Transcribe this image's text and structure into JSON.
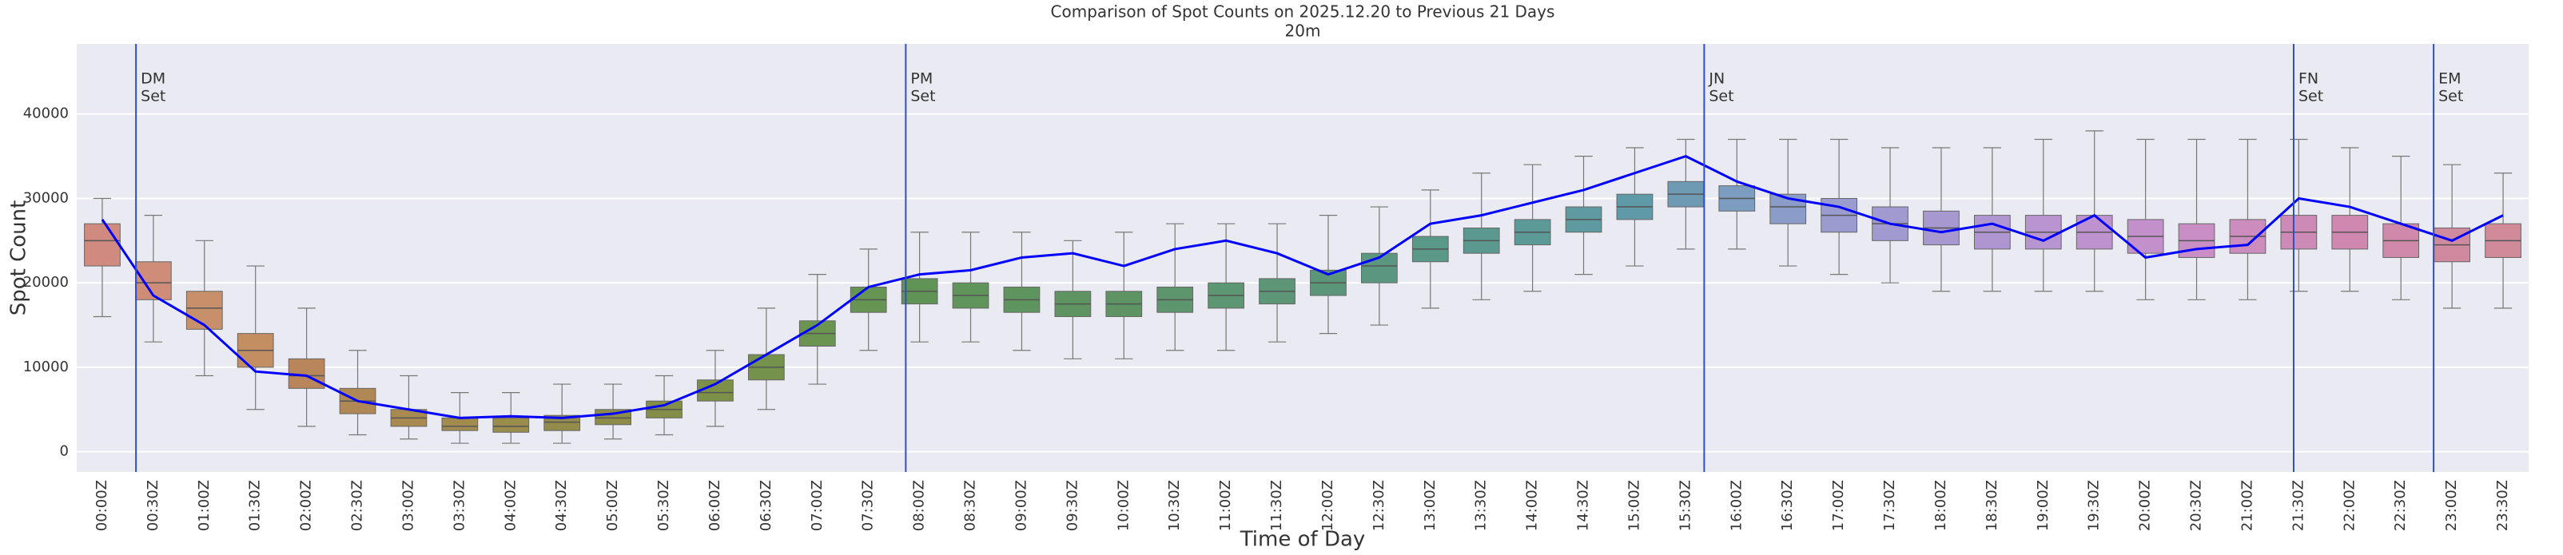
{
  "chart_data": {
    "type": "box",
    "title": "Comparison of Spot Counts on 2025.12.20 to Previous 21 Days",
    "subtitle": "20m",
    "x_label": "Time of Day",
    "y_label": "Spot Count",
    "categories": [
      "00:00Z",
      "00:30Z",
      "01:00Z",
      "01:30Z",
      "02:00Z",
      "02:30Z",
      "03:00Z",
      "03:30Z",
      "04:00Z",
      "04:30Z",
      "05:00Z",
      "05:30Z",
      "06:00Z",
      "06:30Z",
      "07:00Z",
      "07:30Z",
      "08:00Z",
      "08:30Z",
      "09:00Z",
      "09:30Z",
      "10:00Z",
      "10:30Z",
      "11:00Z",
      "11:30Z",
      "12:00Z",
      "12:30Z",
      "13:00Z",
      "13:30Z",
      "14:00Z",
      "14:30Z",
      "15:00Z",
      "15:30Z",
      "16:00Z",
      "16:30Z",
      "17:00Z",
      "17:30Z",
      "18:00Z",
      "18:30Z",
      "19:00Z",
      "19:30Z",
      "20:00Z",
      "20:30Z",
      "21:00Z",
      "21:30Z",
      "22:00Z",
      "22:30Z",
      "23:00Z",
      "23:30Z"
    ],
    "boxes": {
      "median": [
        25000,
        20000,
        17000,
        12000,
        9000,
        6000,
        4000,
        3000,
        3000,
        3500,
        4000,
        5000,
        7000,
        10000,
        14000,
        18000,
        19000,
        18500,
        18000,
        17500,
        17500,
        18000,
        18500,
        19000,
        20000,
        22000,
        24000,
        25000,
        26000,
        27500,
        29000,
        30500,
        30000,
        29000,
        28000,
        27000,
        26500,
        26000,
        26000,
        26000,
        25500,
        25000,
        25500,
        26000,
        26000,
        25000,
        24500,
        25000
      ],
      "q1": [
        22000,
        18000,
        14500,
        10000,
        7500,
        4500,
        3000,
        2500,
        2300,
        2500,
        3200,
        4000,
        6000,
        8500,
        12500,
        16500,
        17500,
        17000,
        16500,
        16000,
        16000,
        16500,
        17000,
        17500,
        18500,
        20000,
        22500,
        23500,
        24500,
        26000,
        27500,
        29000,
        28500,
        27000,
        26000,
        25000,
        24500,
        24000,
        24000,
        24000,
        23500,
        23000,
        23500,
        24000,
        24000,
        23000,
        22500,
        23000
      ],
      "q3": [
        27000,
        22500,
        19000,
        14000,
        11000,
        7500,
        5000,
        4000,
        4000,
        4300,
        5000,
        6000,
        8500,
        11500,
        15500,
        19500,
        20500,
        20000,
        19500,
        19000,
        19000,
        19500,
        20000,
        20500,
        21500,
        23500,
        25500,
        26500,
        27500,
        29000,
        30500,
        32000,
        31500,
        30500,
        30000,
        29000,
        28500,
        28000,
        28000,
        28000,
        27500,
        27000,
        27500,
        28000,
        28000,
        27000,
        26500,
        27000
      ],
      "whislo": [
        16000,
        13000,
        9000,
        5000,
        3000,
        2000,
        1500,
        1000,
        1000,
        1000,
        1500,
        2000,
        3000,
        5000,
        8000,
        12000,
        13000,
        13000,
        12000,
        11000,
        11000,
        12000,
        12000,
        13000,
        14000,
        15000,
        17000,
        18000,
        19000,
        21000,
        22000,
        24000,
        24000,
        22000,
        21000,
        20000,
        19000,
        19000,
        19000,
        19000,
        18000,
        18000,
        18000,
        19000,
        19000,
        18000,
        17000,
        17000
      ],
      "whishi": [
        30000,
        28000,
        25000,
        22000,
        17000,
        12000,
        9000,
        7000,
        7000,
        8000,
        8000,
        9000,
        12000,
        17000,
        21000,
        24000,
        26000,
        26000,
        26000,
        25000,
        26000,
        27000,
        27000,
        27000,
        28000,
        29000,
        31000,
        33000,
        34000,
        35000,
        36000,
        37000,
        37000,
        37000,
        37000,
        36000,
        36000,
        36000,
        37000,
        38000,
        37000,
        37000,
        37000,
        37000,
        36000,
        35000,
        34000,
        33000
      ],
      "colors": [
        "#d08a80",
        "#cf8c78",
        "#c8906a",
        "#c28e62",
        "#b8865a",
        "#b08856",
        "#a88a50",
        "#a28b4e",
        "#9a8c4c",
        "#938c4a",
        "#8c8c48",
        "#848e48",
        "#7c9048",
        "#74924c",
        "#6a9450",
        "#659453",
        "#5f9456",
        "#5f945a",
        "#5e945e",
        "#5e9462",
        "#5e9464",
        "#5d956c",
        "#5c9672",
        "#5c9676",
        "#5c9678",
        "#5b9780",
        "#5a9888",
        "#5b9990",
        "#5c9a98",
        "#5e9aa0",
        "#6099a8",
        "#6e9ab4",
        "#7c9cc0",
        "#8b9cc8",
        "#9a9cd0",
        "#a19ad0",
        "#a898d0",
        "#b096d0",
        "#b894d0",
        "#be92ce",
        "#c490cc",
        "#c88ec5",
        "#cc8cbe",
        "#ce8ab6",
        "#d088b0",
        "#d089a8",
        "#d08aa0",
        "#d08a98"
      ]
    },
    "line": {
      "color": "#0000ff",
      "values": [
        27500,
        18500,
        15000,
        9500,
        9000,
        6000,
        5000,
        4000,
        4200,
        4000,
        4500,
        5500,
        8000,
        11500,
        15000,
        19500,
        21000,
        21500,
        23000,
        23500,
        22000,
        24000,
        25000,
        23500,
        21000,
        23000,
        27000,
        28000,
        29500,
        31000,
        33000,
        35000,
        32000,
        30000,
        29000,
        27000,
        26000,
        27000,
        25000,
        28000,
        23000,
        24000,
        24500,
        30000,
        29000,
        27000,
        25000,
        28000
      ]
    },
    "annotations": [
      {
        "x": 0.66,
        "lines": [
          "DM",
          "Set"
        ]
      },
      {
        "x": 15.73,
        "lines": [
          "PM",
          "Set"
        ]
      },
      {
        "x": 31.36,
        "lines": [
          "JN",
          "Set"
        ]
      },
      {
        "x": 42.9,
        "lines": [
          "FN",
          "Set"
        ]
      },
      {
        "x": 45.64,
        "lines": [
          "EM",
          "Set"
        ]
      }
    ],
    "annotation_color": "#3050c0",
    "ylim": [
      -2400,
      48300
    ],
    "yticks": [
      0,
      10000,
      20000,
      30000,
      40000
    ],
    "grid": true
  }
}
